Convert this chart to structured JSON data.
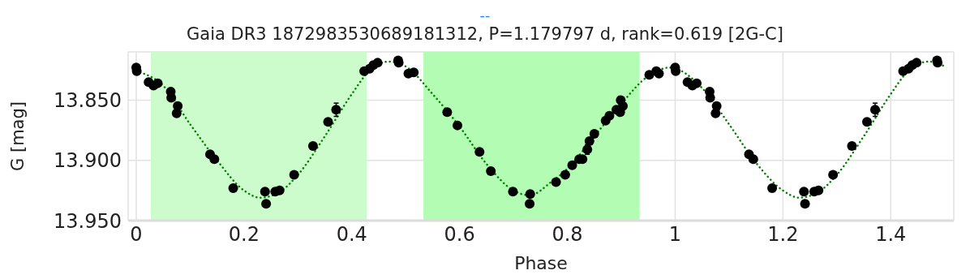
{
  "chart_data": {
    "type": "scatter",
    "title": "--",
    "subtitle": "Gaia DR3 1872983530689181312, P=1.179797 d, rank=0.619 [2G-C]",
    "xlabel": "Phase",
    "ylabel": "G [mag]",
    "xlim": [
      -0.015,
      1.517
    ],
    "xticks": [
      0,
      0.2,
      0.4,
      0.6,
      0.8,
      1,
      1.2,
      1.4
    ],
    "ylim": [
      13.95,
      13.81
    ],
    "yticks": [
      {
        "value": 13.85,
        "label": "13.850"
      },
      {
        "value": 13.9,
        "label": "13.900"
      },
      {
        "value": 13.95,
        "label": "13.950"
      }
    ],
    "grid": true,
    "bands": [
      {
        "axis": "x",
        "from": 0.027,
        "to": 0.428,
        "color": "#ccfbcc"
      },
      {
        "axis": "x",
        "from": 0.533,
        "to": 0.934,
        "color": "#b3fcb3"
      }
    ],
    "series": [
      {
        "color": "#000000",
        "marker": "circle",
        "x": [
          0,
          0.001,
          0.023,
          0.032,
          0.04,
          0.064,
          0.065,
          0.077,
          0.075,
          0.137,
          0.145,
          0.18,
          0.239,
          0.241,
          0.258,
          0.266,
          0.293,
          0.328,
          0.356,
          0.371,
          0.423,
          0.433,
          0.44,
          0.448,
          0.486,
          0.487,
          0.505,
          0.515,
          0.577,
          0.596,
          0.637,
          0.658,
          0.699,
          0.731,
          0.73,
          0.779,
          0.796,
          0.809,
          0.822,
          0.828,
          0.837,
          0.841,
          0.85,
          0.871,
          0.878,
          0.891,
          0.898,
          0.903,
          0.899,
          0.952,
          0.965,
          0.97,
          1,
          1.001,
          1.023,
          1.032,
          1.04,
          1.064,
          1.065,
          1.077,
          1.075,
          1.137,
          1.145,
          1.18,
          1.239,
          1.241,
          1.258,
          1.266,
          1.293,
          1.328,
          1.356,
          1.371,
          1.423,
          1.433,
          1.44,
          1.448,
          1.486,
          1.487
        ],
        "values": [
          13.823,
          13.826,
          13.835,
          13.838,
          13.836,
          13.843,
          13.848,
          13.855,
          13.861,
          13.895,
          13.899,
          13.923,
          13.926,
          13.936,
          13.926,
          13.925,
          13.912,
          13.888,
          13.868,
          13.858,
          13.826,
          13.824,
          13.821,
          13.819,
          13.817,
          13.819,
          13.828,
          13.827,
          13.86,
          13.871,
          13.893,
          13.909,
          13.926,
          13.928,
          13.936,
          13.918,
          13.912,
          13.904,
          13.899,
          13.899,
          13.891,
          13.884,
          13.878,
          13.867,
          13.863,
          13.858,
          13.86,
          13.855,
          13.85,
          13.829,
          13.826,
          13.828,
          13.823,
          13.826,
          13.835,
          13.838,
          13.836,
          13.843,
          13.848,
          13.855,
          13.861,
          13.895,
          13.899,
          13.923,
          13.926,
          13.936,
          13.926,
          13.925,
          13.912,
          13.888,
          13.868,
          13.858,
          13.826,
          13.824,
          13.821,
          13.819,
          13.817,
          13.819
        ],
        "errors": [
          null,
          null,
          null,
          null,
          null,
          null,
          null,
          null,
          null,
          null,
          null,
          null,
          null,
          null,
          null,
          null,
          null,
          null,
          null,
          0.0055,
          null,
          null,
          null,
          null,
          null,
          null,
          null,
          null,
          null,
          null,
          null,
          null,
          null,
          null,
          null,
          null,
          null,
          null,
          null,
          null,
          0.004,
          null,
          null,
          null,
          null,
          null,
          null,
          null,
          null,
          null,
          null,
          null,
          null,
          null,
          null,
          null,
          null,
          null,
          null,
          null,
          null,
          null,
          null,
          null,
          null,
          null,
          null,
          null,
          null,
          null,
          null,
          0.0055,
          null,
          null,
          null,
          null,
          null,
          null
        ]
      },
      {
        "type": "line",
        "color": "#008000",
        "marker": "none",
        "line_style": "dotted",
        "x": [
          0,
          0.05,
          0.1,
          0.15,
          0.2,
          0.23,
          0.27,
          0.3,
          0.35,
          0.4,
          0.43,
          0.47,
          0.5,
          0.55,
          0.6,
          0.65,
          0.7,
          0.73,
          0.77,
          0.8,
          0.85,
          0.9,
          0.95,
          0.99,
          1.05,
          1.1,
          1.15,
          1.2,
          1.23,
          1.27,
          1.3,
          1.35,
          1.4,
          1.43,
          1.47,
          1.5
        ],
        "values": [
          13.826,
          13.838,
          13.87,
          13.9,
          13.925,
          13.931,
          13.925,
          13.912,
          13.88,
          13.845,
          13.827,
          13.818,
          13.822,
          13.845,
          13.872,
          13.903,
          13.925,
          13.929,
          13.918,
          13.907,
          13.88,
          13.853,
          13.83,
          13.823,
          13.84,
          13.87,
          13.902,
          13.925,
          13.931,
          13.925,
          13.912,
          13.88,
          13.845,
          13.827,
          13.818,
          13.822
        ]
      }
    ]
  }
}
